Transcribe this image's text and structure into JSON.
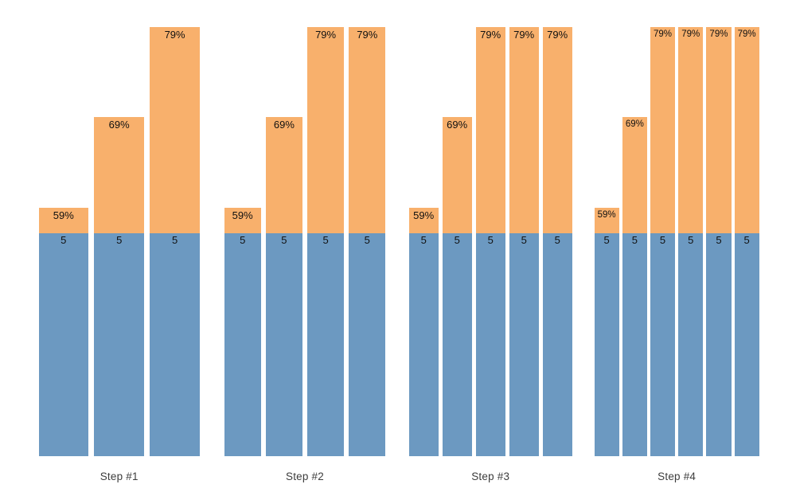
{
  "chart_data": {
    "type": "bar",
    "stacked": true,
    "title": "",
    "xlabel": "",
    "ylabel": "",
    "axes_visible": false,
    "grid": false,
    "legend": "none",
    "value_labels_visible": true,
    "colors": {
      "base_segment": "#6c99c1",
      "top_segment": "#f8b06c",
      "bar_label_text": "#111111",
      "group_label_text": "#3d3d3d",
      "background": "#ffffff"
    },
    "groups": [
      {
        "label": "Step #1",
        "bars": [
          {
            "base_value": 5,
            "base_label": "5",
            "top_pct": 59,
            "top_label": "59%"
          },
          {
            "base_value": 5,
            "base_label": "5",
            "top_pct": 69,
            "top_label": "69%"
          },
          {
            "base_value": 5,
            "base_label": "5",
            "top_pct": 79,
            "top_label": "79%"
          }
        ]
      },
      {
        "label": "Step #2",
        "bars": [
          {
            "base_value": 5,
            "base_label": "5",
            "top_pct": 59,
            "top_label": "59%"
          },
          {
            "base_value": 5,
            "base_label": "5",
            "top_pct": 69,
            "top_label": "69%"
          },
          {
            "base_value": 5,
            "base_label": "5",
            "top_pct": 79,
            "top_label": "79%"
          },
          {
            "base_value": 5,
            "base_label": "5",
            "top_pct": 79,
            "top_label": "79%"
          }
        ]
      },
      {
        "label": "Step #3",
        "bars": [
          {
            "base_value": 5,
            "base_label": "5",
            "top_pct": 59,
            "top_label": "59%"
          },
          {
            "base_value": 5,
            "base_label": "5",
            "top_pct": 69,
            "top_label": "69%"
          },
          {
            "base_value": 5,
            "base_label": "5",
            "top_pct": 79,
            "top_label": "79%"
          },
          {
            "base_value": 5,
            "base_label": "5",
            "top_pct": 79,
            "top_label": "79%"
          },
          {
            "base_value": 5,
            "base_label": "5",
            "top_pct": 79,
            "top_label": "79%"
          }
        ]
      },
      {
        "label": "Step #4",
        "bars": [
          {
            "base_value": 5,
            "base_label": "5",
            "top_pct": 59,
            "top_label": "59%"
          },
          {
            "base_value": 5,
            "base_label": "5",
            "top_pct": 69,
            "top_label": "69%"
          },
          {
            "base_value": 5,
            "base_label": "5",
            "top_pct": 79,
            "top_label": "79%"
          },
          {
            "base_value": 5,
            "base_label": "5",
            "top_pct": 79,
            "top_label": "79%"
          },
          {
            "base_value": 5,
            "base_label": "5",
            "top_pct": 79,
            "top_label": "79%"
          },
          {
            "base_value": 5,
            "base_label": "5",
            "top_pct": 79,
            "top_label": "79%"
          }
        ]
      }
    ]
  }
}
